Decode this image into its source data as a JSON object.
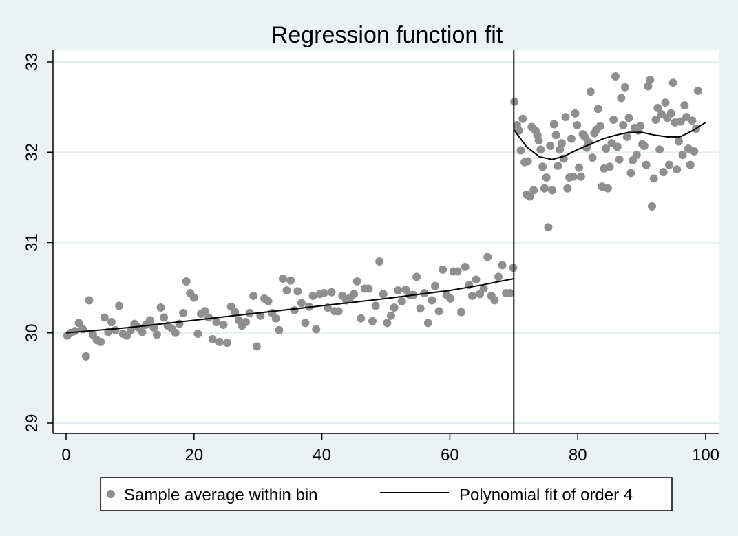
{
  "chart_data": {
    "type": "scatter",
    "title": "Regression function fit",
    "xlabel": "",
    "ylabel": "",
    "xlim": [
      0,
      100
    ],
    "ylim": [
      29,
      33
    ],
    "x_ticks": [
      "0",
      "20",
      "40",
      "60",
      "80",
      "100"
    ],
    "y_ticks": [
      "29",
      "30",
      "31",
      "32",
      "33"
    ],
    "x_tick_values": [
      0,
      20,
      40,
      60,
      80,
      100
    ],
    "y_tick_values": [
      29,
      30,
      31,
      32,
      33
    ],
    "grid": "horizontal",
    "cutoff": 70,
    "legend_position": "bottom",
    "colors": {
      "background": "#eaf2f3",
      "plot": "#ffffff",
      "points": "#8f8f8f",
      "fit": "#000000",
      "grid": "#e3eef0"
    },
    "series": [
      {
        "name": "Sample average within bin",
        "kind": "scatter",
        "points": [
          [
            0.2,
            29.97
          ],
          [
            0.7,
            30.0
          ],
          [
            1.4,
            30.02
          ],
          [
            2.0,
            30.11
          ],
          [
            2.6,
            30.04
          ],
          [
            3.1,
            29.74
          ],
          [
            3.6,
            30.36
          ],
          [
            4.2,
            29.98
          ],
          [
            4.8,
            29.92
          ],
          [
            5.4,
            29.9
          ],
          [
            6.0,
            30.17
          ],
          [
            6.6,
            30.01
          ],
          [
            7.1,
            30.12
          ],
          [
            7.7,
            30.03
          ],
          [
            8.3,
            30.3
          ],
          [
            8.9,
            29.99
          ],
          [
            9.5,
            29.97
          ],
          [
            10.1,
            30.03
          ],
          [
            10.7,
            30.1
          ],
          [
            11.3,
            30.06
          ],
          [
            11.9,
            30.01
          ],
          [
            12.5,
            30.09
          ],
          [
            13.1,
            30.14
          ],
          [
            13.7,
            30.06
          ],
          [
            14.2,
            29.98
          ],
          [
            14.8,
            30.28
          ],
          [
            15.3,
            30.17
          ],
          [
            15.9,
            30.08
          ],
          [
            16.5,
            30.05
          ],
          [
            17.1,
            30.0
          ],
          [
            17.7,
            30.1
          ],
          [
            18.3,
            30.22
          ],
          [
            18.8,
            30.57
          ],
          [
            19.4,
            30.44
          ],
          [
            20.0,
            30.39
          ],
          [
            20.6,
            29.99
          ],
          [
            21.1,
            30.21
          ],
          [
            21.7,
            30.24
          ],
          [
            22.3,
            30.17
          ],
          [
            22.9,
            29.93
          ],
          [
            23.5,
            30.12
          ],
          [
            24.0,
            29.9
          ],
          [
            24.6,
            30.09
          ],
          [
            25.2,
            29.89
          ],
          [
            25.8,
            30.29
          ],
          [
            26.4,
            30.23
          ],
          [
            27.0,
            30.14
          ],
          [
            27.5,
            30.08
          ],
          [
            28.1,
            30.12
          ],
          [
            28.7,
            30.22
          ],
          [
            29.3,
            30.41
          ],
          [
            29.8,
            29.85
          ],
          [
            30.4,
            30.19
          ],
          [
            31.0,
            30.38
          ],
          [
            31.6,
            30.35
          ],
          [
            32.2,
            30.22
          ],
          [
            32.8,
            30.16
          ],
          [
            33.3,
            30.03
          ],
          [
            33.9,
            30.6
          ],
          [
            34.5,
            30.47
          ],
          [
            35.1,
            30.58
          ],
          [
            35.7,
            30.25
          ],
          [
            36.2,
            30.46
          ],
          [
            36.8,
            30.33
          ],
          [
            37.4,
            30.11
          ],
          [
            38.0,
            30.29
          ],
          [
            38.6,
            30.41
          ],
          [
            39.1,
            30.04
          ],
          [
            39.7,
            30.43
          ],
          [
            40.3,
            30.44
          ],
          [
            40.9,
            30.28
          ],
          [
            41.5,
            30.45
          ],
          [
            42.0,
            30.24
          ],
          [
            42.6,
            30.24
          ],
          [
            43.2,
            30.41
          ],
          [
            43.8,
            30.36
          ],
          [
            44.4,
            30.39
          ],
          [
            45.0,
            30.43
          ],
          [
            45.5,
            30.57
          ],
          [
            46.1,
            30.16
          ],
          [
            46.7,
            30.49
          ],
          [
            47.3,
            30.49
          ],
          [
            47.9,
            30.13
          ],
          [
            48.4,
            30.3
          ],
          [
            49.0,
            30.79
          ],
          [
            49.6,
            30.43
          ],
          [
            50.2,
            30.11
          ],
          [
            50.8,
            30.19
          ],
          [
            51.3,
            30.28
          ],
          [
            51.9,
            30.47
          ],
          [
            52.5,
            30.35
          ],
          [
            53.1,
            30.48
          ],
          [
            53.7,
            30.42
          ],
          [
            54.3,
            30.42
          ],
          [
            54.8,
            30.62
          ],
          [
            55.4,
            30.27
          ],
          [
            56.0,
            30.44
          ],
          [
            56.6,
            30.11
          ],
          [
            57.2,
            30.36
          ],
          [
            57.7,
            30.52
          ],
          [
            58.3,
            30.24
          ],
          [
            58.9,
            30.7
          ],
          [
            59.5,
            30.42
          ],
          [
            60.1,
            30.38
          ],
          [
            60.6,
            30.68
          ],
          [
            61.2,
            30.68
          ],
          [
            61.8,
            30.23
          ],
          [
            62.4,
            30.73
          ],
          [
            63.0,
            30.53
          ],
          [
            63.5,
            30.41
          ],
          [
            64.1,
            30.59
          ],
          [
            64.7,
            30.43
          ],
          [
            65.3,
            30.49
          ],
          [
            65.9,
            30.84
          ],
          [
            66.5,
            30.41
          ],
          [
            67.0,
            30.36
          ],
          [
            67.6,
            30.62
          ],
          [
            68.2,
            30.75
          ],
          [
            68.8,
            30.44
          ],
          [
            69.4,
            30.44
          ],
          [
            69.9,
            30.72
          ],
          [
            70.1,
            32.56
          ],
          [
            70.5,
            32.3
          ],
          [
            70.8,
            32.24
          ],
          [
            71.1,
            32.02
          ],
          [
            71.4,
            32.37
          ],
          [
            71.7,
            31.89
          ],
          [
            72.0,
            31.53
          ],
          [
            72.2,
            31.9
          ],
          [
            72.5,
            31.51
          ],
          [
            72.8,
            32.28
          ],
          [
            73.1,
            31.58
          ],
          [
            73.4,
            32.24
          ],
          [
            73.7,
            32.19
          ],
          [
            73.9,
            32.13
          ],
          [
            74.2,
            32.03
          ],
          [
            74.5,
            31.84
          ],
          [
            74.8,
            31.6
          ],
          [
            75.1,
            31.72
          ],
          [
            75.4,
            31.17
          ],
          [
            75.7,
            32.07
          ],
          [
            76.0,
            31.58
          ],
          [
            76.3,
            32.31
          ],
          [
            76.6,
            32.19
          ],
          [
            76.9,
            31.85
          ],
          [
            77.2,
            32.03
          ],
          [
            77.5,
            32.1
          ],
          [
            77.8,
            31.93
          ],
          [
            78.1,
            32.39
          ],
          [
            78.4,
            31.6
          ],
          [
            78.7,
            31.72
          ],
          [
            79.0,
            32.15
          ],
          [
            79.3,
            31.73
          ],
          [
            79.6,
            32.43
          ],
          [
            79.9,
            32.3
          ],
          [
            80.2,
            31.83
          ],
          [
            80.5,
            31.73
          ],
          [
            80.8,
            32.2
          ],
          [
            81.1,
            32.17
          ],
          [
            81.4,
            32.05
          ],
          [
            81.7,
            32.11
          ],
          [
            82.0,
            32.67
          ],
          [
            82.3,
            31.94
          ],
          [
            82.6,
            32.21
          ],
          [
            82.9,
            32.25
          ],
          [
            83.2,
            32.48
          ],
          [
            83.5,
            32.29
          ],
          [
            83.8,
            31.62
          ],
          [
            84.1,
            31.82
          ],
          [
            84.4,
            32.04
          ],
          [
            84.7,
            31.6
          ],
          [
            85.0,
            31.84
          ],
          [
            85.3,
            32.1
          ],
          [
            85.6,
            32.36
          ],
          [
            85.9,
            32.84
          ],
          [
            86.2,
            32.06
          ],
          [
            86.5,
            31.92
          ],
          [
            86.8,
            32.6
          ],
          [
            87.1,
            32.3
          ],
          [
            87.4,
            32.72
          ],
          [
            87.7,
            32.17
          ],
          [
            88.0,
            32.38
          ],
          [
            88.3,
            31.77
          ],
          [
            88.6,
            31.91
          ],
          [
            88.9,
            32.27
          ],
          [
            89.2,
            31.97
          ],
          [
            89.5,
            32.24
          ],
          [
            89.8,
            32.29
          ],
          [
            90.1,
            32.09
          ],
          [
            90.4,
            32.07
          ],
          [
            90.7,
            31.86
          ],
          [
            91.0,
            32.73
          ],
          [
            91.3,
            32.8
          ],
          [
            91.6,
            31.4
          ],
          [
            91.9,
            31.71
          ],
          [
            92.2,
            32.36
          ],
          [
            92.5,
            32.49
          ],
          [
            92.8,
            32.03
          ],
          [
            93.1,
            32.42
          ],
          [
            93.4,
            31.78
          ],
          [
            93.7,
            32.55
          ],
          [
            94.0,
            32.38
          ],
          [
            94.3,
            31.86
          ],
          [
            94.6,
            32.43
          ],
          [
            94.9,
            32.77
          ],
          [
            95.2,
            32.33
          ],
          [
            95.5,
            31.81
          ],
          [
            95.8,
            32.12
          ],
          [
            96.1,
            32.34
          ],
          [
            96.4,
            31.97
          ],
          [
            96.7,
            32.52
          ],
          [
            97.0,
            32.39
          ],
          [
            97.3,
            32.04
          ],
          [
            97.6,
            31.86
          ],
          [
            97.9,
            32.35
          ],
          [
            98.2,
            32.01
          ],
          [
            98.5,
            32.26
          ],
          [
            98.8,
            32.68
          ]
        ]
      },
      {
        "name": "Polynomial fit of order 4",
        "kind": "line",
        "segments": [
          [
            [
              0,
              30.0
            ],
            [
              10,
              30.06
            ],
            [
              20,
              30.14
            ],
            [
              30,
              30.22
            ],
            [
              40,
              30.3
            ],
            [
              50,
              30.38
            ],
            [
              60,
              30.47
            ],
            [
              65,
              30.53
            ],
            [
              70,
              30.6
            ]
          ],
          [
            [
              70,
              32.25
            ],
            [
              72,
              32.06
            ],
            [
              74,
              31.95
            ],
            [
              76,
              31.92
            ],
            [
              78,
              31.96
            ],
            [
              80,
              32.03
            ],
            [
              82,
              32.09
            ],
            [
              84,
              32.15
            ],
            [
              86,
              32.19
            ],
            [
              88,
              32.22
            ],
            [
              90,
              32.22
            ],
            [
              92,
              32.19
            ],
            [
              94,
              32.17
            ],
            [
              96,
              32.17
            ],
            [
              98,
              32.24
            ],
            [
              100,
              32.33
            ]
          ]
        ]
      }
    ]
  }
}
